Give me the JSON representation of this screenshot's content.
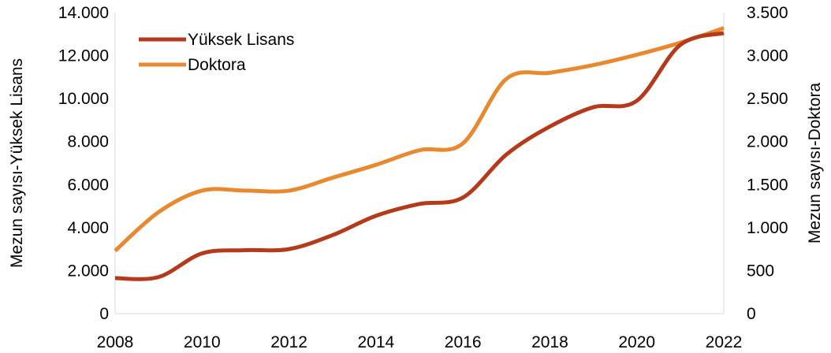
{
  "chart_data": {
    "type": "line",
    "x": [
      2008,
      2009,
      2010,
      2011,
      2012,
      2013,
      2014,
      2015,
      2016,
      2017,
      2018,
      2019,
      2020,
      2021,
      2022
    ],
    "xlim": [
      2008,
      2022
    ],
    "x_ticks": [
      2008,
      2010,
      2012,
      2014,
      2016,
      2018,
      2020,
      2022
    ],
    "x_tick_labels": [
      "2008",
      "2010",
      "2012",
      "2014",
      "2016",
      "2018",
      "2020",
      "2022"
    ],
    "ylabel_left": "Mezun sayısı-Yüksek Lisans",
    "ylabel_right": "Mezun sayısı-Doktora",
    "ylim_left": [
      0,
      14000
    ],
    "ylim_right": [
      0,
      3500
    ],
    "y_ticks_left": [
      0,
      2000,
      4000,
      6000,
      8000,
      10000,
      12000,
      14000
    ],
    "y_tick_labels_left": [
      "0",
      "2.000",
      "4.000",
      "6.000",
      "8.000",
      "10.000",
      "12.000",
      "14.000"
    ],
    "y_ticks_right": [
      0,
      500,
      1000,
      1500,
      2000,
      2500,
      3000,
      3500
    ],
    "y_tick_labels_right": [
      "0",
      "500",
      "1.000",
      "1.500",
      "2.000",
      "2.500",
      "3.000",
      "3.500"
    ],
    "grid": false,
    "legend_position": "top-left",
    "series": [
      {
        "name": "Yüksek Lisans",
        "axis": "left",
        "color": "#b5391b",
        "values": [
          1650,
          1700,
          2800,
          2950,
          3000,
          3650,
          4550,
          5100,
          5400,
          7400,
          8700,
          9600,
          9900,
          12500,
          13050
        ]
      },
      {
        "name": "Doktora",
        "axis": "right",
        "color": "#e9892f",
        "values": [
          730,
          1180,
          1430,
          1430,
          1430,
          1580,
          1730,
          1900,
          1980,
          2730,
          2800,
          2890,
          3010,
          3150,
          3320
        ]
      }
    ]
  }
}
